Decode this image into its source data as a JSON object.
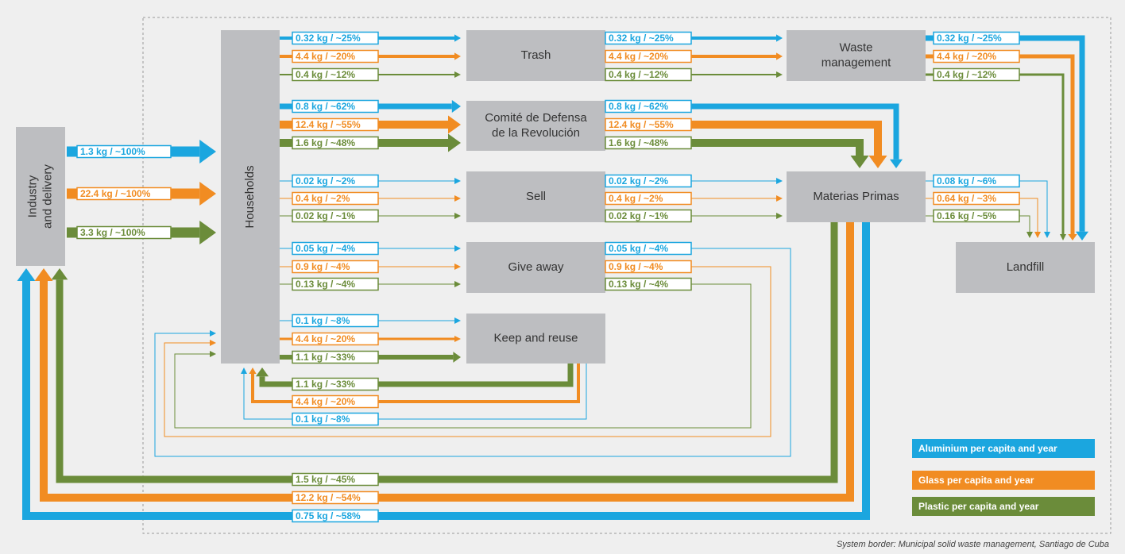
{
  "nodes": {
    "industry": [
      "Industry",
      "and delivery"
    ],
    "households": [
      "Households"
    ],
    "trash": [
      "Trash"
    ],
    "cdr": [
      "Comité de Defensa",
      "de la Revolución"
    ],
    "sell": [
      "Sell"
    ],
    "give": [
      "Give away"
    ],
    "keep": [
      "Keep and reuse"
    ],
    "wm": [
      "Waste",
      "management"
    ],
    "mp": [
      "Materias Primas"
    ],
    "landfill": [
      "Landfill"
    ]
  },
  "flows": {
    "ind_hh": [
      "1.3 kg / ~100%",
      "22.4 kg / ~100%",
      "3.3 kg / ~100%"
    ],
    "hh_trash": [
      "0.32 kg / ~25%",
      "4.4 kg / ~20%",
      "0.4 kg / ~12%"
    ],
    "trash_wm": [
      "0.32 kg / ~25%",
      "4.4 kg / ~20%",
      "0.4 kg / ~12%"
    ],
    "wm_lf": [
      "0.32 kg / ~25%",
      "4.4 kg / ~20%",
      "0.4 kg / ~12%"
    ],
    "hh_cdr": [
      "0.8 kg / ~62%",
      "12.4 kg / ~55%",
      "1.6 kg / ~48%"
    ],
    "cdr_mp": [
      "0.8 kg / ~62%",
      "12.4 kg / ~55%",
      "1.6 kg / ~48%"
    ],
    "hh_sell": [
      "0.02 kg / ~2%",
      "0.4 kg / ~2%",
      "0.02 kg / ~1%"
    ],
    "sell_mp": [
      "0.02 kg / ~2%",
      "0.4 kg / ~2%",
      "0.02 kg / ~1%"
    ],
    "mp_lf": [
      "0.08 kg / ~6%",
      "0.64 kg / ~3%",
      "0.16 kg / ~5%"
    ],
    "hh_give": [
      "0.05 kg / ~4%",
      "0.9 kg / ~4%",
      "0.13 kg / ~4%"
    ],
    "give_hh": [
      "0.05 kg / ~4%",
      "0.9 kg / ~4%",
      "0.13 kg / ~4%"
    ],
    "hh_keep": [
      "0.1 kg / ~8%",
      "4.4 kg / ~20%",
      "1.1 kg / ~33%"
    ],
    "keep_hh": [
      "0.1 kg / ~8%",
      "4.4 kg / ~20%",
      "1.1 kg / ~33%"
    ],
    "mp_ind": [
      "0.75 kg / ~58%",
      "12.2 kg / ~54%",
      "1.5 kg / ~45%"
    ]
  },
  "legend": [
    "Aluminium per capita and year",
    "Glass per capita and year",
    "Plastic per capita and year"
  ],
  "colors": [
    "#1ba6df",
    "#f18c22",
    "#6b8c3a"
  ],
  "footer": "System border: Municipal solid waste management, Santiago de Cuba"
}
